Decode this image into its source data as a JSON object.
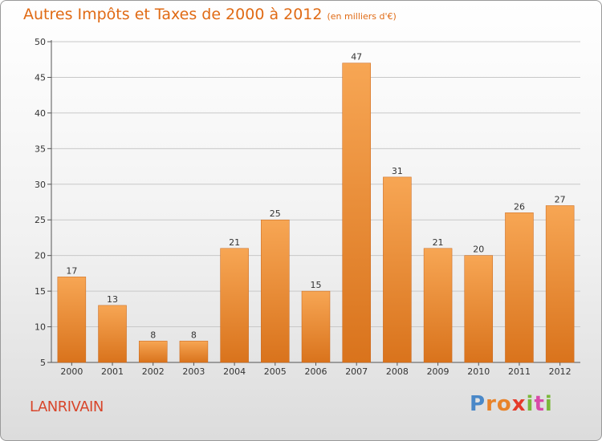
{
  "title": "Autres Impôts et Taxes de 2000 à 2012",
  "unit": "(en milliers d'€)",
  "commune": "LANRIVAIN",
  "logo": "Proxiti",
  "colors": {
    "bar_light": "#f7a654",
    "bar_dark": "#d9731c",
    "title": "#e06a14",
    "commune": "#d8452a"
  },
  "chart_data": {
    "type": "bar",
    "title": "Autres Impôts et Taxes de 2000 à 2012",
    "categories": [
      "2000",
      "2001",
      "2002",
      "2003",
      "2004",
      "2005",
      "2006",
      "2007",
      "2008",
      "2009",
      "2010",
      "2011",
      "2012"
    ],
    "values": [
      17,
      13,
      8,
      8,
      21,
      25,
      15,
      47,
      31,
      21,
      20,
      26,
      27
    ],
    "ylim": [
      5,
      50
    ],
    "yticks": [
      5,
      10,
      15,
      20,
      25,
      30,
      35,
      40,
      45,
      50
    ],
    "grid": true,
    "xlabel": "",
    "ylabel": ""
  }
}
